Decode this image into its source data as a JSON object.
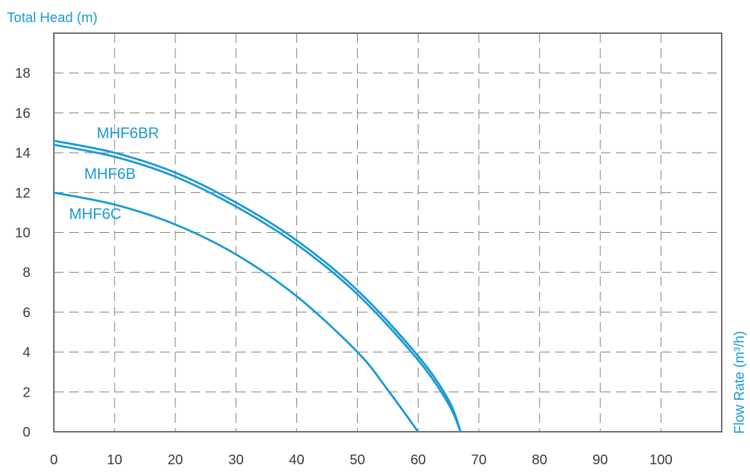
{
  "chart_data": {
    "type": "line",
    "xlabel": "Flow Rate (m³/h)",
    "ylabel": "Total Head (m)",
    "xlim": [
      0,
      110
    ],
    "ylim": [
      0,
      20
    ],
    "x_ticks": [
      0,
      10,
      20,
      30,
      40,
      50,
      60,
      70,
      80,
      90,
      100
    ],
    "y_ticks": [
      0,
      2,
      4,
      6,
      8,
      10,
      12,
      14,
      16,
      18
    ],
    "grid": true,
    "line_color": "#1a9ad6",
    "series": [
      {
        "name": "MHF6BR",
        "x": [
          0,
          10,
          20,
          30,
          40,
          50,
          60,
          65,
          67
        ],
        "y": [
          14.6,
          14.0,
          13.0,
          11.5,
          9.6,
          7.1,
          3.8,
          1.6,
          0
        ]
      },
      {
        "name": "MHF6B",
        "x": [
          0,
          10,
          20,
          30,
          40,
          50,
          60,
          65,
          67
        ],
        "y": [
          14.4,
          13.8,
          12.8,
          11.3,
          9.4,
          6.9,
          3.6,
          1.4,
          0
        ]
      },
      {
        "name": "MHF6C",
        "x": [
          0,
          10,
          20,
          30,
          40,
          50,
          55,
          60
        ],
        "y": [
          12.0,
          11.4,
          10.4,
          8.9,
          6.8,
          4.0,
          2.1,
          0
        ]
      }
    ]
  }
}
